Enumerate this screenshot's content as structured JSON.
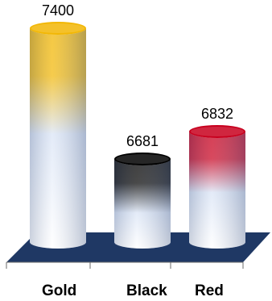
{
  "chart_data": {
    "type": "bar",
    "title": "",
    "xlabel": "",
    "ylabel": "",
    "categories": [
      "Gold",
      "Black",
      "Red"
    ],
    "values": [
      7400,
      6681,
      6832
    ],
    "grid": false,
    "legend": "none",
    "style": "3d-cylinder",
    "series_colors": [
      "#f2b705",
      "#000000",
      "#c8001e"
    ],
    "floor_color": "#1f3864"
  }
}
